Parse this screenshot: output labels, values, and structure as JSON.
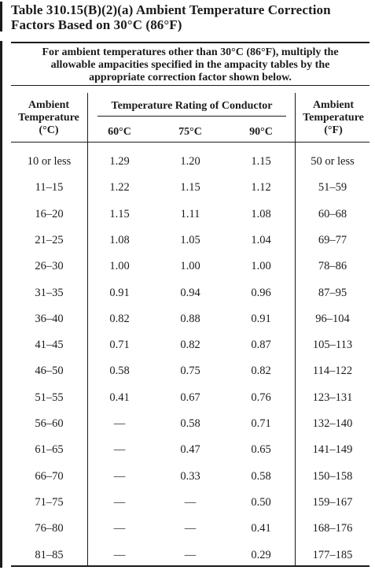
{
  "title": {
    "line1": "Table 310.15(B)(2)(a) Ambient Temperature Correction",
    "line2": "Factors Based on 30°C (86°F)"
  },
  "note": {
    "line1": "For ambient temperatures other than 30°C (86°F), multiply the",
    "line2": "allowable ampacities specified in the ampacity tables by the",
    "line3": "appropriate correction factor shown below."
  },
  "headers": {
    "ambient_c": {
      "line1": "Ambient",
      "line2": "Temperature",
      "line3": "(°C)"
    },
    "rating": "Temperature Rating of Conductor",
    "sub": [
      "60°C",
      "75°C",
      "90°C"
    ],
    "ambient_f": {
      "line1": "Ambient",
      "line2": "Temperature",
      "line3": "(°F)"
    }
  },
  "rows": [
    {
      "c": "10 or less",
      "v60": "1.29",
      "v75": "1.20",
      "v90": "1.15",
      "f": "50 or less"
    },
    {
      "c": "11–15",
      "v60": "1.22",
      "v75": "1.15",
      "v90": "1.12",
      "f": "51–59"
    },
    {
      "c": "16–20",
      "v60": "1.15",
      "v75": "1.11",
      "v90": "1.08",
      "f": "60–68"
    },
    {
      "c": "21–25",
      "v60": "1.08",
      "v75": "1.05",
      "v90": "1.04",
      "f": "69–77"
    },
    {
      "c": "26–30",
      "v60": "1.00",
      "v75": "1.00",
      "v90": "1.00",
      "f": "78–86"
    },
    {
      "c": "31–35",
      "v60": "0.91",
      "v75": "0.94",
      "v90": "0.96",
      "f": "87–95"
    },
    {
      "c": "36–40",
      "v60": "0.82",
      "v75": "0.88",
      "v90": "0.91",
      "f": "96–104"
    },
    {
      "c": "41–45",
      "v60": "0.71",
      "v75": "0.82",
      "v90": "0.87",
      "f": "105–113"
    },
    {
      "c": "46–50",
      "v60": "0.58",
      "v75": "0.75",
      "v90": "0.82",
      "f": "114–122"
    },
    {
      "c": "51–55",
      "v60": "0.41",
      "v75": "0.67",
      "v90": "0.76",
      "f": "123–131"
    },
    {
      "c": "56–60",
      "v60": "—",
      "v75": "0.58",
      "v90": "0.71",
      "f": "132–140"
    },
    {
      "c": "61–65",
      "v60": "—",
      "v75": "0.47",
      "v90": "0.65",
      "f": "141–149"
    },
    {
      "c": "66–70",
      "v60": "—",
      "v75": "0.33",
      "v90": "0.58",
      "f": "150–158"
    },
    {
      "c": "71–75",
      "v60": "—",
      "v75": "—",
      "v90": "0.50",
      "f": "159–167"
    },
    {
      "c": "76–80",
      "v60": "—",
      "v75": "—",
      "v90": "0.41",
      "f": "168–176"
    },
    {
      "c": "81–85",
      "v60": "—",
      "v75": "—",
      "v90": "0.29",
      "f": "177–185"
    }
  ]
}
